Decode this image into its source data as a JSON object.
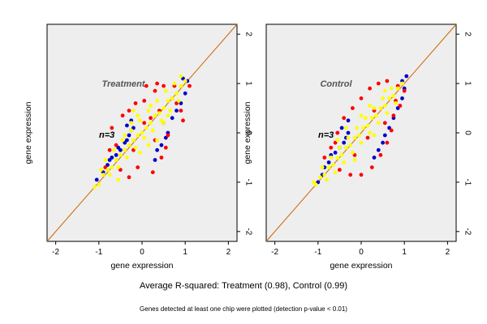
{
  "figure": {
    "summary": "Average R-squared: Treatment (0.98), Control (0.99)",
    "footnote": "Genes detected at least one chip were plotted (detection p-value < 0.01)"
  },
  "colors": {
    "background": "#eeeeee",
    "red": "#ff0000",
    "blue": "#0000cc",
    "yellow": "#ffff00",
    "diagonal": "#cc6600"
  },
  "chart_data": [
    {
      "type": "scatter",
      "title": "Treatment",
      "annotation": "n=3",
      "xlabel": "gene expression",
      "ylabel": "gene expression",
      "xlim": [
        -2.2,
        2.2
      ],
      "ylim": [
        -2.2,
        2.2
      ],
      "xticks": [
        -2,
        -1,
        0,
        1,
        2
      ],
      "yticks": [
        -2,
        -1,
        0,
        1,
        2
      ],
      "xtick_labels": [
        "-2",
        "-1",
        "0",
        "1",
        "2"
      ],
      "ytick_labels": [
        "-2",
        "-1",
        "0",
        "1",
        "2"
      ],
      "reference_line": "y = x",
      "grid": false,
      "series": [
        {
          "color": "blue",
          "points": [
            [
              -1.05,
              -0.95
            ],
            [
              -0.9,
              -0.8
            ],
            [
              -0.8,
              -0.65
            ],
            [
              -0.75,
              -0.55
            ],
            [
              -0.7,
              -0.5
            ],
            [
              -0.6,
              -0.45
            ],
            [
              -0.55,
              -0.3
            ],
            [
              -0.5,
              -0.35
            ],
            [
              -0.4,
              -0.2
            ],
            [
              -0.35,
              -0.15
            ],
            [
              -0.3,
              -0.05
            ],
            [
              -0.25,
              0.05
            ],
            [
              -0.2,
              0.1
            ],
            [
              -0.35,
              0.15
            ],
            [
              -0.25,
              0.25
            ],
            [
              0.3,
              -0.55
            ],
            [
              0.35,
              -0.35
            ],
            [
              0.45,
              -0.25
            ],
            [
              0.55,
              -0.1
            ],
            [
              0.6,
              0.0
            ],
            [
              0.5,
              0.2
            ],
            [
              0.7,
              0.3
            ],
            [
              0.8,
              0.45
            ],
            [
              0.9,
              0.6
            ],
            [
              1.0,
              0.8
            ],
            [
              1.05,
              1.05
            ],
            [
              0.95,
              1.1
            ]
          ]
        },
        {
          "color": "red",
          "points": [
            [
              -0.75,
              -0.35
            ],
            [
              -0.6,
              -0.25
            ],
            [
              -0.7,
              0.1
            ],
            [
              -0.45,
              0.35
            ],
            [
              -0.15,
              0.6
            ],
            [
              -0.3,
              0.45
            ],
            [
              0.05,
              0.65
            ],
            [
              0.3,
              0.85
            ],
            [
              0.35,
              1.0
            ],
            [
              0.1,
              0.95
            ],
            [
              0.5,
              0.95
            ],
            [
              0.75,
              0.95
            ],
            [
              1.1,
              0.95
            ],
            [
              0.8,
              0.6
            ],
            [
              0.9,
              0.45
            ],
            [
              0.95,
              0.25
            ],
            [
              0.6,
              -0.05
            ],
            [
              0.55,
              -0.3
            ],
            [
              0.45,
              -0.5
            ],
            [
              0.25,
              -0.8
            ],
            [
              -0.3,
              -0.9
            ],
            [
              -0.5,
              -0.75
            ],
            [
              -0.1,
              -0.7
            ],
            [
              0.3,
              -0.15
            ],
            [
              -0.2,
              -0.35
            ],
            [
              0.05,
              0.2
            ],
            [
              0.4,
              0.45
            ],
            [
              -0.85,
              -0.7
            ],
            [
              0.7,
              0.7
            ],
            [
              0.2,
              0.3
            ]
          ]
        },
        {
          "color": "yellow",
          "points": [
            [
              -1.0,
              -1.05
            ],
            [
              -0.9,
              -0.85
            ],
            [
              -0.8,
              -0.75
            ],
            [
              -0.7,
              -0.7
            ],
            [
              -0.6,
              -0.55
            ],
            [
              -0.5,
              -0.45
            ],
            [
              -0.4,
              -0.35
            ],
            [
              -0.3,
              -0.25
            ],
            [
              -0.2,
              -0.15
            ],
            [
              -0.1,
              -0.05
            ],
            [
              0.0,
              0.0
            ],
            [
              0.1,
              0.1
            ],
            [
              0.2,
              0.2
            ],
            [
              0.3,
              0.35
            ],
            [
              0.4,
              0.4
            ],
            [
              0.5,
              0.5
            ],
            [
              0.6,
              0.65
            ],
            [
              0.7,
              0.7
            ],
            [
              0.8,
              0.8
            ],
            [
              0.9,
              0.95
            ],
            [
              1.0,
              1.05
            ],
            [
              -0.95,
              -0.75
            ],
            [
              -0.75,
              -0.85
            ],
            [
              -0.55,
              -0.7
            ],
            [
              -0.35,
              -0.5
            ],
            [
              -0.15,
              -0.3
            ],
            [
              0.05,
              -0.1
            ],
            [
              0.25,
              0.05
            ],
            [
              0.45,
              0.25
            ],
            [
              0.65,
              0.45
            ],
            [
              0.85,
              0.65
            ],
            [
              -0.85,
              -0.55
            ],
            [
              -0.65,
              -0.35
            ],
            [
              -0.45,
              -0.15
            ],
            [
              -0.25,
              0.05
            ],
            [
              -0.05,
              0.25
            ],
            [
              0.15,
              0.45
            ],
            [
              0.35,
              0.65
            ],
            [
              0.55,
              0.85
            ],
            [
              0.75,
              1.0
            ],
            [
              -0.1,
              0.35
            ],
            [
              0.2,
              0.55
            ],
            [
              -0.4,
              -0.05
            ],
            [
              0.5,
              0.2
            ],
            [
              0.15,
              -0.25
            ],
            [
              -0.55,
              -0.95
            ],
            [
              0.35,
              -0.15
            ],
            [
              -0.25,
              0.2
            ],
            [
              0.9,
              1.15
            ],
            [
              -1.1,
              -1.1
            ],
            [
              -0.05,
              -0.4
            ],
            [
              0.6,
              0.35
            ],
            [
              -0.2,
              0.45
            ]
          ]
        }
      ]
    },
    {
      "type": "scatter",
      "title": "Control",
      "annotation": "n=3",
      "xlabel": "gene expression",
      "ylabel": "gene expression",
      "xlim": [
        -2.2,
        2.2
      ],
      "ylim": [
        -2.2,
        2.2
      ],
      "xticks": [
        -2,
        -1,
        0,
        1,
        2
      ],
      "yticks": [
        -2,
        -1,
        0,
        1,
        2
      ],
      "xtick_labels": [
        "-2",
        "-1",
        "0",
        "1",
        "2"
      ],
      "ytick_labels": [
        "-2",
        "-1",
        "0",
        "1",
        "2"
      ],
      "reference_line": "y = x",
      "grid": false,
      "series": [
        {
          "color": "blue",
          "points": [
            [
              -1.0,
              -1.0
            ],
            [
              -0.9,
              -0.85
            ],
            [
              -0.85,
              -0.7
            ],
            [
              -0.75,
              -0.6
            ],
            [
              -0.7,
              -0.45
            ],
            [
              -0.6,
              -0.4
            ],
            [
              -0.5,
              -0.3
            ],
            [
              -0.4,
              -0.2
            ],
            [
              -0.35,
              -0.1
            ],
            [
              -0.3,
              0.0
            ],
            [
              -0.45,
              0.1
            ],
            [
              -0.3,
              0.25
            ],
            [
              0.3,
              -0.5
            ],
            [
              0.4,
              -0.35
            ],
            [
              0.5,
              -0.2
            ],
            [
              0.55,
              -0.05
            ],
            [
              0.65,
              0.1
            ],
            [
              0.75,
              0.3
            ],
            [
              0.85,
              0.5
            ],
            [
              0.95,
              0.7
            ],
            [
              1.0,
              0.9
            ],
            [
              1.05,
              1.15
            ],
            [
              0.95,
              1.05
            ]
          ]
        },
        {
          "color": "red",
          "points": [
            [
              -0.85,
              -0.5
            ],
            [
              -0.7,
              -0.3
            ],
            [
              -0.55,
              0.0
            ],
            [
              -0.4,
              0.3
            ],
            [
              -0.2,
              0.5
            ],
            [
              0.0,
              0.7
            ],
            [
              0.2,
              0.9
            ],
            [
              0.4,
              1.0
            ],
            [
              0.6,
              1.05
            ],
            [
              0.85,
              0.95
            ],
            [
              1.0,
              0.85
            ],
            [
              0.9,
              0.55
            ],
            [
              0.75,
              0.35
            ],
            [
              0.7,
              0.05
            ],
            [
              0.6,
              -0.2
            ],
            [
              0.45,
              -0.45
            ],
            [
              0.25,
              -0.7
            ],
            [
              0.0,
              -0.85
            ],
            [
              -0.25,
              -0.85
            ],
            [
              -0.5,
              -0.75
            ],
            [
              0.55,
              0.2
            ],
            [
              -0.15,
              -0.45
            ],
            [
              0.3,
              0.45
            ],
            [
              -0.6,
              -0.2
            ],
            [
              0.8,
              0.65
            ],
            [
              0.15,
              -0.1
            ]
          ]
        },
        {
          "color": "yellow",
          "points": [
            [
              -1.05,
              -1.05
            ],
            [
              -0.95,
              -0.9
            ],
            [
              -0.85,
              -0.85
            ],
            [
              -0.75,
              -0.7
            ],
            [
              -0.65,
              -0.65
            ],
            [
              -0.55,
              -0.5
            ],
            [
              -0.45,
              -0.45
            ],
            [
              -0.35,
              -0.3
            ],
            [
              -0.25,
              -0.25
            ],
            [
              -0.15,
              -0.1
            ],
            [
              -0.05,
              -0.05
            ],
            [
              0.05,
              0.1
            ],
            [
              0.15,
              0.15
            ],
            [
              0.25,
              0.3
            ],
            [
              0.35,
              0.35
            ],
            [
              0.45,
              0.5
            ],
            [
              0.55,
              0.55
            ],
            [
              0.65,
              0.7
            ],
            [
              0.75,
              0.75
            ],
            [
              0.85,
              0.9
            ],
            [
              0.95,
              1.0
            ],
            [
              -0.9,
              -0.7
            ],
            [
              -0.7,
              -0.5
            ],
            [
              -0.5,
              -0.3
            ],
            [
              -0.3,
              -0.1
            ],
            [
              -0.1,
              0.1
            ],
            [
              0.1,
              0.3
            ],
            [
              0.3,
              0.5
            ],
            [
              0.5,
              0.7
            ],
            [
              0.7,
              0.9
            ],
            [
              -0.8,
              -0.95
            ],
            [
              -0.6,
              -0.8
            ],
            [
              -0.4,
              -0.6
            ],
            [
              -0.2,
              -0.4
            ],
            [
              0.0,
              -0.2
            ],
            [
              0.2,
              0.0
            ],
            [
              0.4,
              0.2
            ],
            [
              0.6,
              0.4
            ],
            [
              0.8,
              0.6
            ],
            [
              -0.35,
              0.1
            ],
            [
              0.0,
              0.35
            ],
            [
              0.3,
              -0.05
            ],
            [
              -0.55,
              -0.15
            ],
            [
              0.55,
              0.85
            ],
            [
              -1.1,
              -1.0
            ],
            [
              0.2,
              0.55
            ],
            [
              -0.15,
              -0.55
            ]
          ]
        }
      ]
    }
  ]
}
